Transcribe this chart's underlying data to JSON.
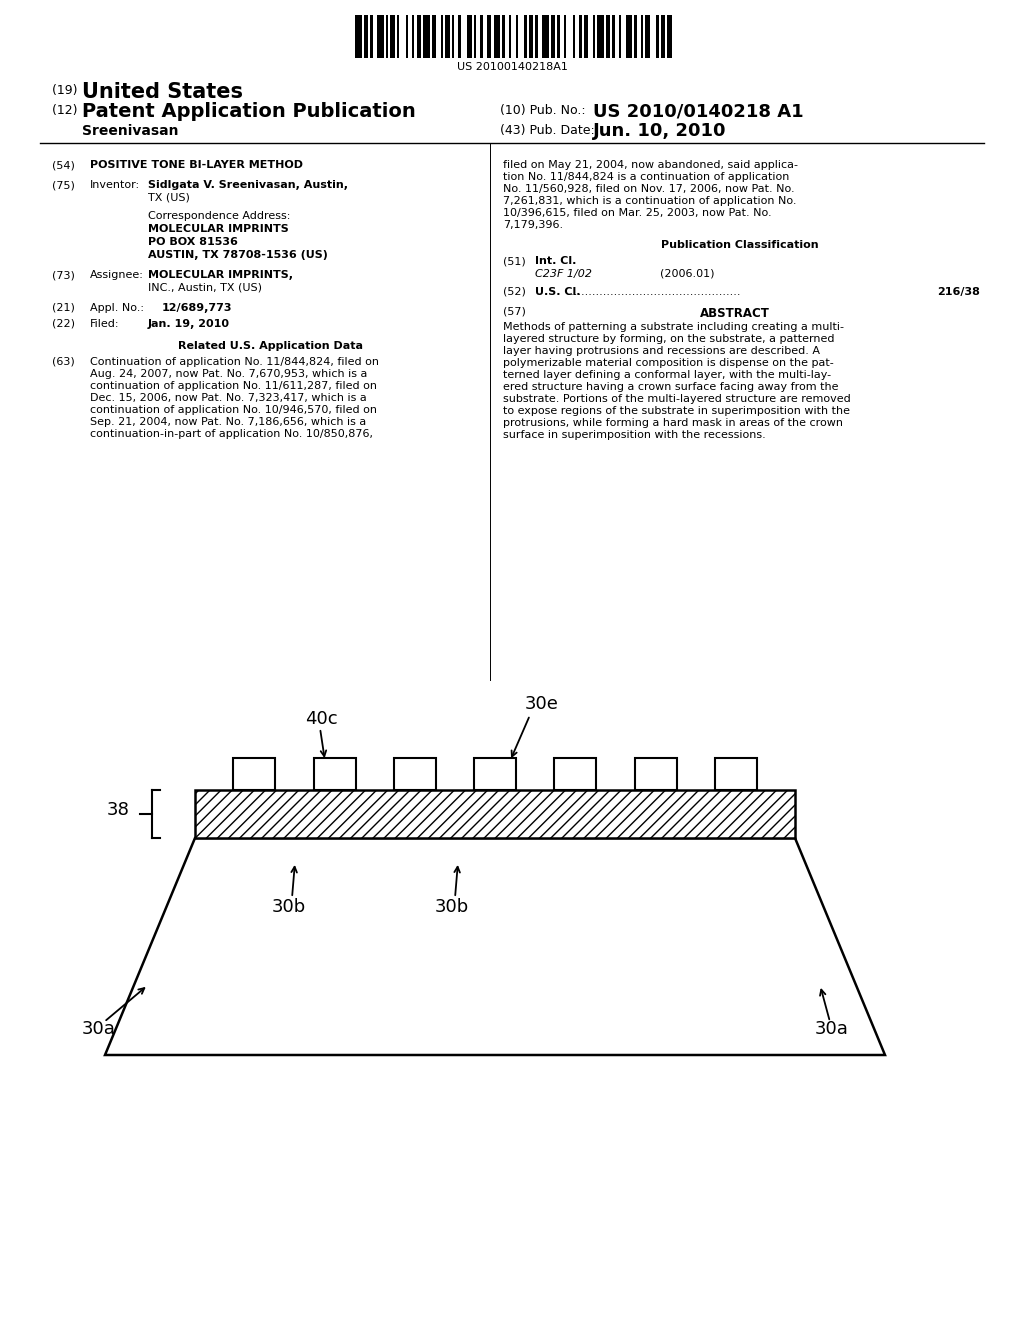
{
  "bg_color": "#ffffff",
  "barcode_text": "US 20100140218A1",
  "field54_title": "POSITIVE TONE BI-LAYER METHOD",
  "field75_inventor": "Sidlgata V. Sreenivasan, Austin,",
  "field75_inventor2": "TX (US)",
  "corr_addr_label": "Correspondence Address:",
  "corr_addr_line1": "MOLECULAR IMPRINTS",
  "corr_addr_line2": "PO BOX 81536",
  "corr_addr_line3": "AUSTIN, TX 78708-1536 (US)",
  "field73_value1": "MOLECULAR IMPRINTS,",
  "field73_value2": "INC., Austin, TX (US)",
  "field21_value": "12/689,773",
  "field22_value": "Jan. 19, 2010",
  "related_title": "Related U.S. Application Data",
  "pub_class_title": "Publication Classification",
  "field51_value1": "C23F 1/02",
  "field51_value2": "(2006.01)",
  "field52_value": "216/38",
  "field57_title": "ABSTRACT",
  "diagram_label_40c": "40c",
  "diagram_label_30e": "30e",
  "diagram_label_38": "38",
  "diagram_label_30b": "30b",
  "diagram_label_30a": "30a"
}
